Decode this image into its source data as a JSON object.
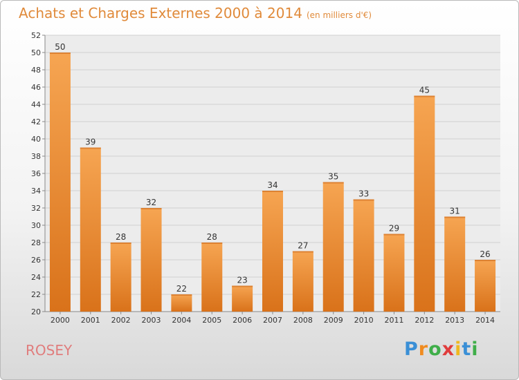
{
  "header": {
    "title": "Achats et Charges Externes 2000 à 2014",
    "unit": "(en milliers d'€)"
  },
  "footer": {
    "commune": "ROSEY",
    "logo_text": "Proxiti"
  },
  "colors": {
    "bar_light": "#f6a552",
    "bar_dark": "#d9721a",
    "title": "#e08a3a",
    "commune": "#e07d7d"
  },
  "chart_data": {
    "type": "bar",
    "title": "Achats et Charges Externes 2000 à 2014",
    "subtitle": "(en milliers d'€)",
    "categories": [
      "2000",
      "2001",
      "2002",
      "2003",
      "2004",
      "2005",
      "2006",
      "2007",
      "2008",
      "2009",
      "2010",
      "2011",
      "2012",
      "2013",
      "2014"
    ],
    "values": [
      50,
      39,
      28,
      32,
      22,
      28,
      23,
      34,
      27,
      35,
      33,
      29,
      45,
      31,
      26
    ],
    "ylim": [
      20,
      52
    ],
    "yticks": [
      20,
      22,
      24,
      26,
      28,
      30,
      32,
      34,
      36,
      38,
      40,
      42,
      44,
      46,
      48,
      50,
      52
    ],
    "grid": true,
    "xlabel": "",
    "ylabel": ""
  }
}
